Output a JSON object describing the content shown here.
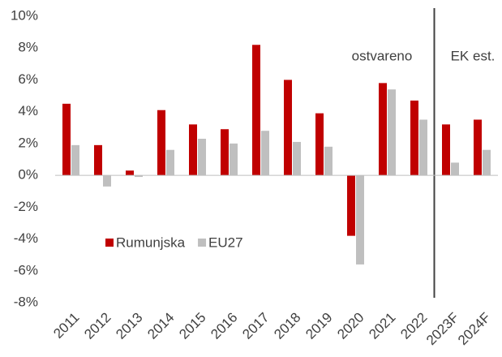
{
  "chart_data": {
    "type": "bar",
    "categories": [
      "2011",
      "2012",
      "2013",
      "2014",
      "2015",
      "2016",
      "2017",
      "2018",
      "2019",
      "2020",
      "2021",
      "2022",
      "2023F",
      "2024F"
    ],
    "series": [
      {
        "name": "Rumunjska",
        "color": "#c00000",
        "values": [
          4.5,
          1.9,
          0.3,
          4.1,
          3.2,
          2.9,
          8.2,
          6.0,
          3.9,
          -3.8,
          5.8,
          4.7,
          3.2,
          3.5
        ]
      },
      {
        "name": "EU27",
        "color": "#bfbfbf",
        "values": [
          1.9,
          -0.7,
          -0.1,
          1.6,
          2.3,
          2.0,
          2.8,
          2.1,
          1.8,
          -5.6,
          5.4,
          3.5,
          0.8,
          1.6
        ]
      }
    ],
    "ylim": [
      -8,
      10
    ],
    "yticks": [
      {
        "value": -8,
        "label": "-8%"
      },
      {
        "value": -6,
        "label": "-6%"
      },
      {
        "value": -4,
        "label": "-4%"
      },
      {
        "value": -2,
        "label": "-2%"
      },
      {
        "value": 0,
        "label": "0%"
      },
      {
        "value": 2,
        "label": "2%"
      },
      {
        "value": 4,
        "label": "4%"
      },
      {
        "value": 6,
        "label": "6%"
      },
      {
        "value": 8,
        "label": "8%"
      },
      {
        "value": 10,
        "label": "10%"
      }
    ],
    "annotations": [
      "ostvareno",
      "EK est."
    ],
    "legend": "lower left"
  }
}
